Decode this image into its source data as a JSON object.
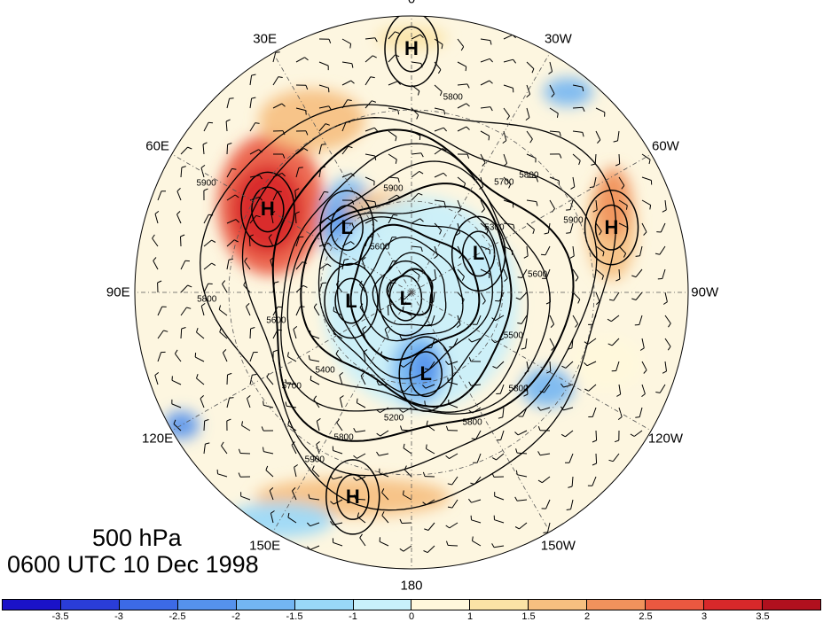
{
  "map": {
    "projection": "north-polar-stereographic",
    "level_label": "500 hPa",
    "time_label": "0600 UTC 10 Dec 1998",
    "longitude_labels": [
      {
        "id": "lon-0",
        "text": "0",
        "angle": 0
      },
      {
        "id": "lon-30w",
        "text": "30W",
        "angle": 30
      },
      {
        "id": "lon-60w",
        "text": "60W",
        "angle": 60
      },
      {
        "id": "lon-90w",
        "text": "90W",
        "angle": 90
      },
      {
        "id": "lon-120w",
        "text": "120W",
        "angle": 120
      },
      {
        "id": "lon-150w",
        "text": "150W",
        "angle": 150
      },
      {
        "id": "lon-180",
        "text": "180",
        "angle": 180
      },
      {
        "id": "lon-150e",
        "text": "150E",
        "angle": 210
      },
      {
        "id": "lon-120e",
        "text": "120E",
        "angle": 240
      },
      {
        "id": "lon-90e",
        "text": "90E",
        "angle": 270
      },
      {
        "id": "lon-60e",
        "text": "60E",
        "angle": 300
      },
      {
        "id": "lon-30e",
        "text": "30E",
        "angle": 330
      }
    ],
    "pressure_centers": [
      {
        "type": "H",
        "text": "H",
        "lon_deg": 0,
        "r_frac": 0.88
      },
      {
        "type": "H",
        "text": "H",
        "lon_deg": 300,
        "r_frac": 0.6
      },
      {
        "type": "L",
        "text": "L",
        "lon_deg": 315,
        "r_frac": 0.33
      },
      {
        "type": "H",
        "text": "H",
        "lon_deg": 72,
        "r_frac": 0.76
      },
      {
        "type": "L",
        "text": "L",
        "lon_deg": 60,
        "r_frac": 0.28
      },
      {
        "type": "L",
        "text": "L",
        "lon_deg": 225,
        "r_frac": 0.03
      },
      {
        "type": "L",
        "text": "L",
        "lon_deg": 262,
        "r_frac": 0.22
      },
      {
        "type": "L",
        "text": "L",
        "lon_deg": 170,
        "r_frac": 0.3
      },
      {
        "type": "H",
        "text": "H",
        "lon_deg": 196,
        "r_frac": 0.77
      }
    ],
    "contour_labels": [
      {
        "text": "5800",
        "lon_deg": 12,
        "r_frac": 0.72
      },
      {
        "text": "5700",
        "lon_deg": 40,
        "r_frac": 0.52
      },
      {
        "text": "5800",
        "lon_deg": 45,
        "r_frac": 0.6
      },
      {
        "text": "5300",
        "lon_deg": 52,
        "r_frac": 0.38
      },
      {
        "text": "5900",
        "lon_deg": 66,
        "r_frac": 0.64
      },
      {
        "text": "5600",
        "lon_deg": 82,
        "r_frac": 0.46
      },
      {
        "text": "5500",
        "lon_deg": 113,
        "r_frac": 0.4
      },
      {
        "text": "5800",
        "lon_deg": 132,
        "r_frac": 0.52
      },
      {
        "text": "5200",
        "lon_deg": 188,
        "r_frac": 0.46
      },
      {
        "text": "5800",
        "lon_deg": 155,
        "r_frac": 0.52
      },
      {
        "text": "5800",
        "lon_deg": 205,
        "r_frac": 0.58
      },
      {
        "text": "5900",
        "lon_deg": 210,
        "r_frac": 0.7
      },
      {
        "text": "5700",
        "lon_deg": 232,
        "r_frac": 0.55
      },
      {
        "text": "5400",
        "lon_deg": 228,
        "r_frac": 0.42
      },
      {
        "text": "5800",
        "lon_deg": 268,
        "r_frac": 0.74
      },
      {
        "text": "5600",
        "lon_deg": 258,
        "r_frac": 0.5
      },
      {
        "text": "5900",
        "lon_deg": 298,
        "r_frac": 0.84
      },
      {
        "text": "5600",
        "lon_deg": 325,
        "r_frac": 0.2
      },
      {
        "text": "5900",
        "lon_deg": 350,
        "r_frac": 0.38
      }
    ],
    "anomaly_blobs": [
      {
        "lon_deg": 302,
        "r_frac": 0.6,
        "rx": 60,
        "ry": 80,
        "value": 2.6
      },
      {
        "lon_deg": 300,
        "r_frac": 0.6,
        "rx": 40,
        "ry": 50,
        "value": 3.2
      },
      {
        "lon_deg": 330,
        "r_frac": 0.72,
        "rx": 60,
        "ry": 35,
        "value": 1.6
      },
      {
        "lon_deg": 318,
        "r_frac": 0.34,
        "rx": 32,
        "ry": 50,
        "value": -1.8
      },
      {
        "lon_deg": 318,
        "r_frac": 0.34,
        "rx": 18,
        "ry": 28,
        "value": -2.3
      },
      {
        "lon_deg": 342,
        "r_frac": 0.32,
        "rx": 45,
        "ry": 18,
        "value": 1.6
      },
      {
        "lon_deg": 72,
        "r_frac": 0.76,
        "rx": 28,
        "ry": 60,
        "value": 1.6
      },
      {
        "lon_deg": 66,
        "r_frac": 0.8,
        "rx": 20,
        "ry": 40,
        "value": 2.2
      },
      {
        "lon_deg": 38,
        "r_frac": 0.92,
        "rx": 28,
        "ry": 16,
        "value": -1.8
      },
      {
        "lon_deg": 70,
        "r_frac": 0.3,
        "rx": 25,
        "ry": 22,
        "value": -1.3
      },
      {
        "lon_deg": 140,
        "r_frac": 0.05,
        "rx": 110,
        "ry": 120,
        "value": -0.6
      },
      {
        "lon_deg": 175,
        "r_frac": 0.28,
        "rx": 30,
        "ry": 40,
        "value": -1.8
      },
      {
        "lon_deg": 170,
        "r_frac": 0.28,
        "rx": 16,
        "ry": 22,
        "value": -2.2
      },
      {
        "lon_deg": 125,
        "r_frac": 0.6,
        "rx": 30,
        "ry": 22,
        "value": -1.6
      },
      {
        "lon_deg": 196,
        "r_frac": 0.77,
        "rx": 110,
        "ry": 22,
        "value": 1.7
      },
      {
        "lon_deg": 240,
        "r_frac": 0.96,
        "rx": 20,
        "ry": 16,
        "value": -2.2
      },
      {
        "lon_deg": 0,
        "r_frac": 0.92,
        "rx": 40,
        "ry": 14,
        "value": 1.2
      },
      {
        "lon_deg": 110,
        "r_frac": 0.75,
        "rx": 40,
        "ry": 30,
        "value": 0.8
      },
      {
        "lon_deg": 210,
        "r_frac": 0.95,
        "rx": 60,
        "ry": 20,
        "value": -1.2
      }
    ]
  },
  "colorbar": {
    "colors": [
      "#1a12c8",
      "#2a3dd8",
      "#3c6ae6",
      "#5592ec",
      "#73b6f2",
      "#99d8f8",
      "#c8f0fb",
      "#fff8dc",
      "#fbe3a6",
      "#f6bf80",
      "#f1925c",
      "#ea5840",
      "#d7282a",
      "#b0101e"
    ],
    "tick_labels": [
      "-3.5",
      "-3",
      "-2.5",
      "-2",
      "-1.5",
      "-1",
      "0",
      "1",
      "1.5",
      "2",
      "2.5",
      "3",
      "3.5"
    ]
  }
}
